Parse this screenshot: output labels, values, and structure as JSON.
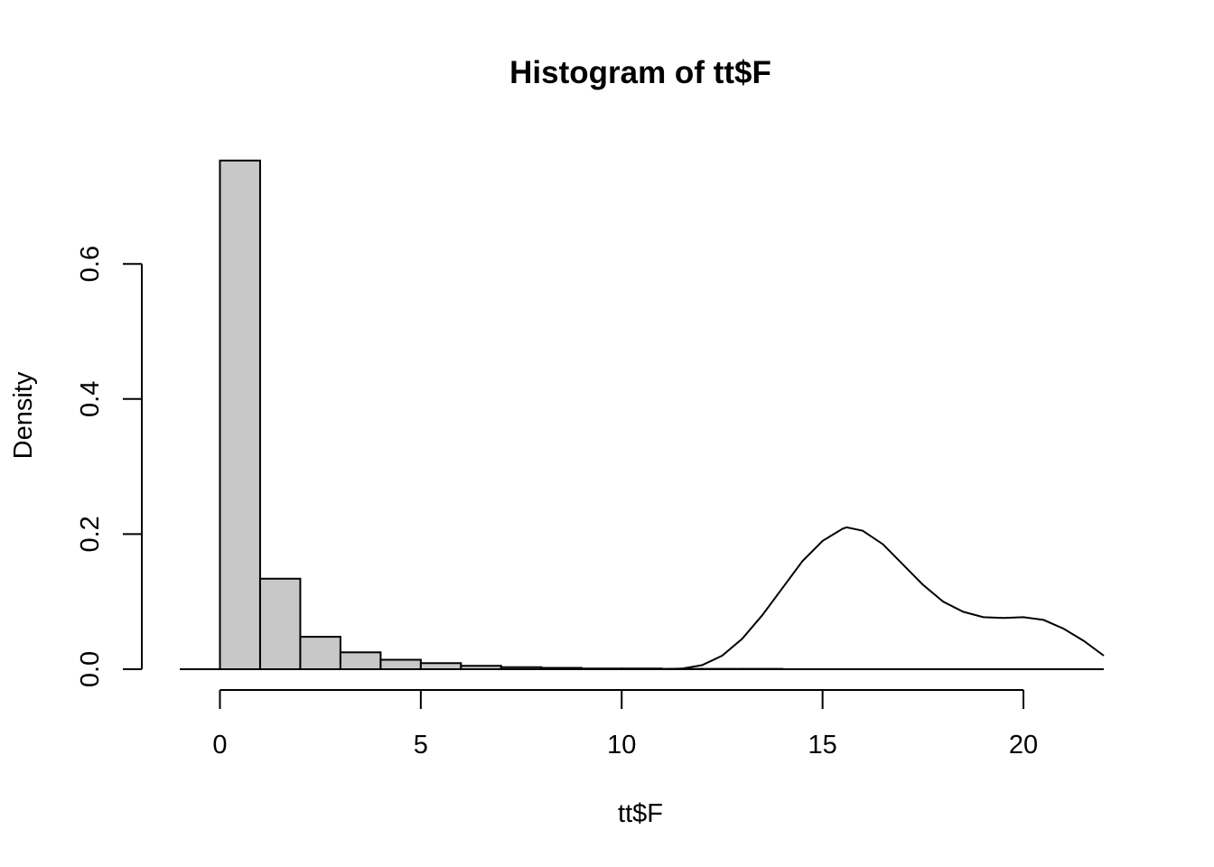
{
  "chart_data": {
    "type": "bar",
    "title": "Histogram of tt$F",
    "xlabel": "tt$F",
    "ylabel": "Density",
    "bar_color": "#c8c8c8",
    "line_color": "#000000",
    "xlim": [
      -1,
      22
    ],
    "ylim": [
      0,
      0.75
    ],
    "x_ticks": [
      0,
      5,
      10,
      15,
      20
    ],
    "x_tick_labels": [
      "0",
      "5",
      "10",
      "15",
      "20"
    ],
    "y_ticks": [
      0,
      0.2,
      0.4,
      0.6
    ],
    "y_tick_labels": [
      "0.0",
      "0.2",
      "0.4",
      "0.6"
    ],
    "bins": [
      {
        "x0": 0,
        "x1": 1,
        "density": 0.753
      },
      {
        "x0": 1,
        "x1": 2,
        "density": 0.134
      },
      {
        "x0": 2,
        "x1": 3,
        "density": 0.048
      },
      {
        "x0": 3,
        "x1": 4,
        "density": 0.025
      },
      {
        "x0": 4,
        "x1": 5,
        "density": 0.014
      },
      {
        "x0": 5,
        "x1": 6,
        "density": 0.009
      },
      {
        "x0": 6,
        "x1": 7,
        "density": 0.005
      },
      {
        "x0": 7,
        "x1": 8,
        "density": 0.003
      },
      {
        "x0": 8,
        "x1": 9,
        "density": 0.002
      },
      {
        "x0": 9,
        "x1": 10,
        "density": 0.001
      },
      {
        "x0": 10,
        "x1": 11,
        "density": 0.001
      },
      {
        "x0": 11,
        "x1": 12,
        "density": 0.0005
      },
      {
        "x0": 12,
        "x1": 13,
        "density": 0.0005
      },
      {
        "x0": 13,
        "x1": 14,
        "density": 0.0005
      }
    ],
    "density_curve": {
      "x": [
        -1,
        0,
        5,
        10,
        11,
        11.5,
        12,
        12.5,
        13,
        13.5,
        14,
        14.5,
        15,
        15.5,
        15.6,
        16,
        16.5,
        17,
        17.5,
        18,
        18.5,
        19,
        19.5,
        20,
        20.5,
        21,
        21.5,
        22
      ],
      "y": [
        0,
        0,
        0,
        0,
        0.0,
        0.001,
        0.006,
        0.02,
        0.045,
        0.08,
        0.12,
        0.16,
        0.19,
        0.208,
        0.21,
        0.205,
        0.185,
        0.155,
        0.125,
        0.1,
        0.085,
        0.077,
        0.076,
        0.077,
        0.073,
        0.06,
        0.042,
        0.02
      ]
    }
  }
}
